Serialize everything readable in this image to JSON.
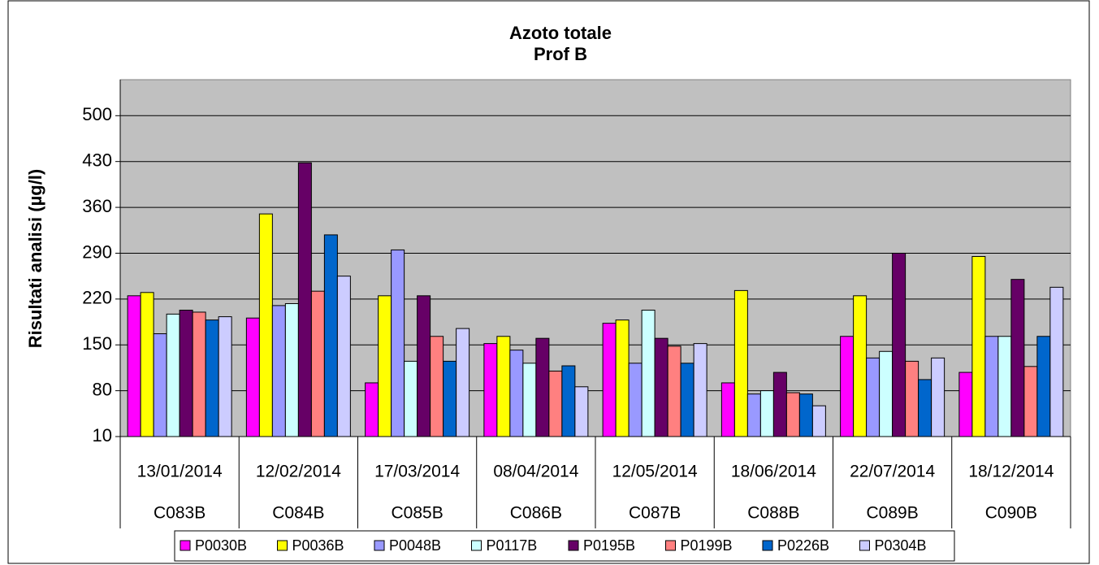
{
  "chart_data": {
    "type": "bar",
    "title": "Azoto totale",
    "subtitle": "Prof B",
    "y_label": "Risultati analisi (µg/l)",
    "categories": [
      "C083B",
      "C084B",
      "C085B",
      "C086B",
      "C087B",
      "C088B",
      "C089B",
      "C090B"
    ],
    "category_dates": [
      "13/01/2014",
      "12/02/2014",
      "17/03/2014",
      "08/04/2014",
      "12/05/2014",
      "18/06/2014",
      "22/07/2014",
      "18/12/2014"
    ],
    "series": [
      {
        "name": "P0030B",
        "color": "#ff00ff",
        "values": [
          225,
          191,
          92,
          152,
          183,
          92,
          163,
          108
        ]
      },
      {
        "name": "P0036B",
        "color": "#ffff00",
        "values": [
          230,
          350,
          225,
          163,
          188,
          233,
          225,
          285
        ]
      },
      {
        "name": "P0048B",
        "color": "#9999ff",
        "values": [
          167,
          210,
          295,
          142,
          122,
          75,
          130,
          163
        ]
      },
      {
        "name": "P0117B",
        "color": "#ccffff",
        "values": [
          197,
          213,
          125,
          122,
          203,
          80,
          140,
          163
        ]
      },
      {
        "name": "P0195B",
        "color": "#660066",
        "values": [
          203,
          428,
          225,
          160,
          160,
          108,
          290,
          250
        ]
      },
      {
        "name": "P0199B",
        "color": "#ff8080",
        "values": [
          200,
          232,
          163,
          110,
          148,
          77,
          125,
          117
        ]
      },
      {
        "name": "P0226B",
        "color": "#0066cc",
        "values": [
          188,
          318,
          125,
          118,
          122,
          75,
          97,
          163
        ]
      },
      {
        "name": "P0304B",
        "color": "#ccccff",
        "values": [
          193,
          255,
          175,
          86,
          152,
          57,
          130,
          238
        ]
      }
    ],
    "ylim": [
      10,
      555
    ],
    "yticks": [
      10,
      80,
      150,
      220,
      290,
      360,
      430,
      500
    ],
    "grid": true,
    "legend": "bottom"
  }
}
